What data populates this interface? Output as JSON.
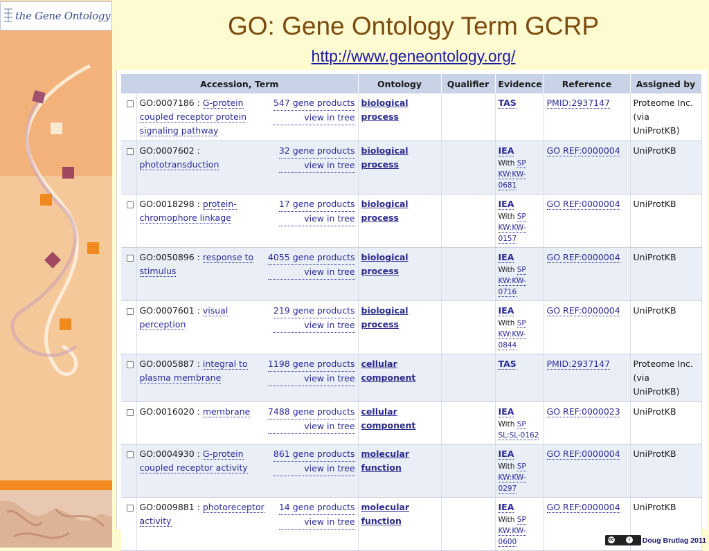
{
  "logo": {
    "text": "the Gene Ontology"
  },
  "slide": {
    "title": "GO: Gene Ontology Term GCRP",
    "url": "http://www.geneontology.org/",
    "footer": "Doug Brutlag 2011"
  },
  "colors": {
    "background": "#fffbd0",
    "sidebar_orange": "#f3b27a",
    "sidebar_light": "#f8dcb8",
    "title": "#7a4a10",
    "link": "#1a1aa6",
    "table_header": "#c9d3e8",
    "row_alt": "#e9eef7"
  },
  "table": {
    "headers": [
      "Accession, Term",
      "Ontology",
      "Qualifier",
      "Evidence",
      "Reference",
      "Assigned by"
    ],
    "rows": [
      {
        "id": "GO:0007186 :",
        "term": "G-protein coupled receptor protein signaling pathway",
        "products": "547 gene products",
        "tree": "view in tree",
        "ontology_1": "biological",
        "ontology_2": "process",
        "qualifier": "",
        "evidence": "TAS",
        "with_label": "",
        "with_ref": "",
        "reference": "PMID:2937147",
        "assigned": "Proteome Inc. (via UniProtKB)"
      },
      {
        "id": "GO:0007602 :",
        "term": "phototransduction",
        "products": "32 gene products",
        "tree": "view in tree",
        "ontology_1": "biological",
        "ontology_2": "process",
        "qualifier": "",
        "evidence": "IEA",
        "with_label": "With",
        "with_ref": "SP KW:KW-0681",
        "reference": "GO REF:0000004",
        "assigned": "UniProtKB"
      },
      {
        "id": "GO:0018298 :",
        "term": "protein-chromophore linkage",
        "products": "17 gene products",
        "tree": "view in tree",
        "ontology_1": "biological",
        "ontology_2": "process",
        "qualifier": "",
        "evidence": "IEA",
        "with_label": "With",
        "with_ref": "SP KW:KW-0157",
        "reference": "GO REF:0000004",
        "assigned": "UniProtKB"
      },
      {
        "id": "GO:0050896 :",
        "term": "response to stimulus",
        "products": "4055 gene products",
        "tree": "view in tree",
        "ontology_1": "biological",
        "ontology_2": "process",
        "qualifier": "",
        "evidence": "IEA",
        "with_label": "With",
        "with_ref": "SP KW:KW-0716",
        "reference": "GO REF:0000004",
        "assigned": "UniProtKB"
      },
      {
        "id": "GO:0007601 :",
        "term": "visual perception",
        "products": "219 gene products",
        "tree": "view in tree",
        "ontology_1": "biological",
        "ontology_2": "process",
        "qualifier": "",
        "evidence": "IEA",
        "with_label": "With",
        "with_ref": "SP KW:KW-0844",
        "reference": "GO REF:0000004",
        "assigned": "UniProtKB"
      },
      {
        "id": "GO:0005887 :",
        "term": "integral to plasma membrane",
        "products": "1198 gene products",
        "tree": "view in tree",
        "ontology_1": "cellular",
        "ontology_2": "component",
        "qualifier": "",
        "evidence": "TAS",
        "with_label": "",
        "with_ref": "",
        "reference": "PMID:2937147",
        "assigned": "Proteome Inc. (via UniProtKB)"
      },
      {
        "id": "GO:0016020 :",
        "term": "membrane",
        "products": "7488 gene products",
        "tree": "view in tree",
        "ontology_1": "cellular",
        "ontology_2": "component",
        "qualifier": "",
        "evidence": "IEA",
        "with_label": "With",
        "with_ref": "SP SL:SL-0162",
        "reference": "GO REF:0000023",
        "assigned": "UniProtKB"
      },
      {
        "id": "GO:0004930 :",
        "term": "G-protein coupled receptor activity",
        "products": "861 gene products",
        "tree": "view in tree",
        "ontology_1": "molecular",
        "ontology_2": "function",
        "qualifier": "",
        "evidence": "IEA",
        "with_label": "With",
        "with_ref": "SP KW:KW-0297",
        "reference": "GO REF:0000004",
        "assigned": "UniProtKB"
      },
      {
        "id": "GO:0009881 :",
        "term": "photoreceptor activity",
        "products": "14 gene products",
        "tree": "view in tree",
        "ontology_1": "molecular",
        "ontology_2": "function",
        "qualifier": "",
        "evidence": "IEA",
        "with_label": "With",
        "with_ref": "SP KW:KW-0600",
        "reference": "GO REF:0000004",
        "assigned": "UniProtKB"
      }
    ]
  }
}
